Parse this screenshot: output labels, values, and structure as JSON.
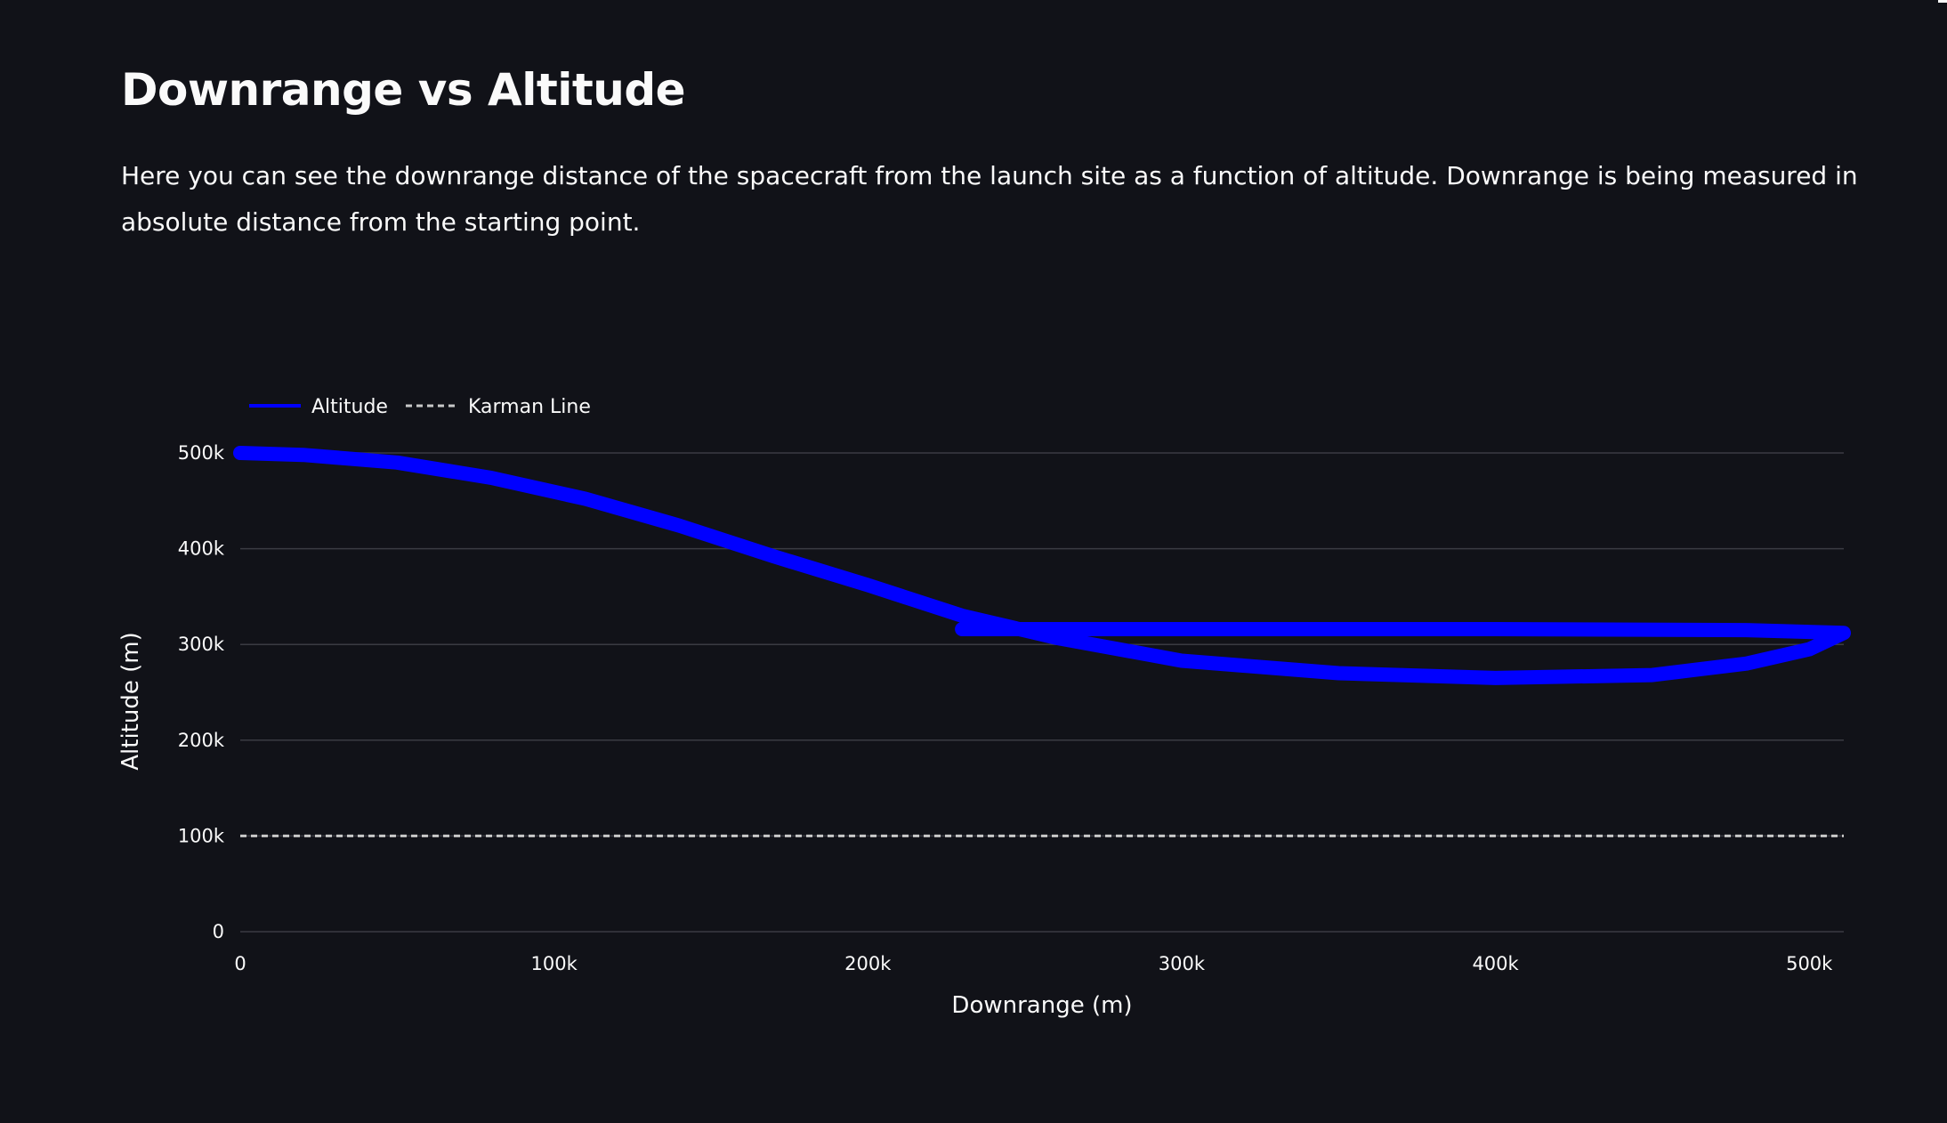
{
  "page": {
    "title": "Downrange vs Altitude",
    "description": "Here you can see the downrange distance of the spacecraft from the launch site as a function of altitude. Downrange is being measured in absolute distance from the starting point."
  },
  "colors": {
    "background": "#111218",
    "text": "#fafafa",
    "gridline": "#3a3b42",
    "altitude": "#0000ff",
    "karman": "#c8c8c8"
  },
  "chart_data": {
    "type": "line",
    "title": "",
    "xlabel": "Downrange (m)",
    "ylabel": "Altitude (m)",
    "xlim": [
      0,
      511000
    ],
    "ylim": [
      0,
      500000
    ],
    "grid": true,
    "legend_position": "top-left",
    "x_ticks": [
      0,
      100000,
      200000,
      300000,
      400000,
      500000
    ],
    "x_tick_labels": [
      "0",
      "100k",
      "200k",
      "300k",
      "400k",
      "500k"
    ],
    "y_ticks": [
      0,
      100000,
      200000,
      300000,
      400000,
      500000
    ],
    "y_tick_labels": [
      "0",
      "100k",
      "200k",
      "300k",
      "400k",
      "500k"
    ],
    "series": [
      {
        "name": "Altitude",
        "style": "solid",
        "color": "#0000ff",
        "x": [
          0,
          20000,
          50000,
          80000,
          110000,
          140000,
          170000,
          200000,
          230000,
          260000,
          300000,
          350000,
          400000,
          450000,
          480000,
          500000,
          511000,
          480000,
          400000,
          300000,
          230000
        ],
        "y": [
          500000,
          498000,
          490000,
          474000,
          452000,
          424000,
          392000,
          362000,
          330000,
          307000,
          283000,
          270000,
          265000,
          268000,
          280000,
          295000,
          312000,
          315000,
          316000,
          316000,
          316000
        ]
      },
      {
        "name": "Karman Line",
        "style": "dashed",
        "color": "#c8c8c8",
        "x": [
          0,
          511000
        ],
        "y": [
          100000,
          100000
        ]
      }
    ]
  }
}
